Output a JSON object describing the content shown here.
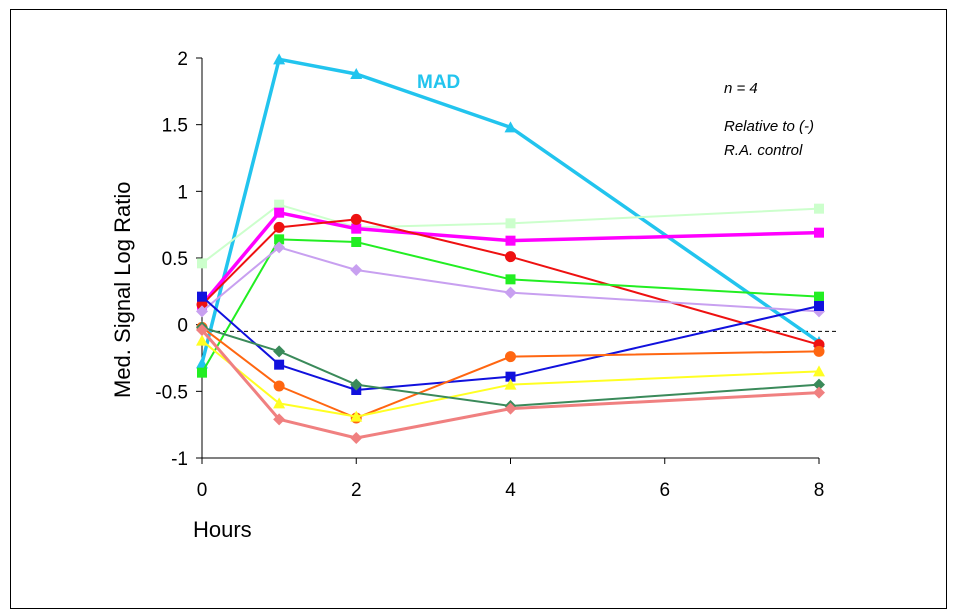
{
  "chart_data": {
    "type": "line",
    "xlabel": "Hours",
    "ylabel": "Med. Signal Log Ratio",
    "xlim": [
      0,
      8
    ],
    "ylim": [
      -1,
      2
    ],
    "xticks": [
      0,
      2,
      4,
      6,
      8
    ],
    "yticks": [
      -1,
      -0.5,
      0,
      0.5,
      1,
      1.5,
      2
    ],
    "xtick_labels": [
      "0",
      "2",
      "4",
      "6",
      "8"
    ],
    "ytick_labels": [
      "-1",
      "-0.5",
      "0",
      "0.5",
      "1",
      "1.5",
      "2"
    ],
    "reference_line_y": -0.05,
    "annotations": {
      "series_label": "MAD",
      "n": "n = 4",
      "relative_line1": "Relative to (-)",
      "relative_line2": "R.A. control"
    },
    "x": [
      0,
      1,
      2,
      4,
      8
    ],
    "series": [
      {
        "name": "MAD",
        "color": "#22c4ee",
        "marker": "triangle",
        "width": 3.5,
        "values": [
          -0.29,
          1.99,
          1.88,
          1.48,
          -0.13
        ]
      },
      {
        "color": "#ccffcc",
        "marker": "square",
        "width": 2,
        "values": [
          0.46,
          0.9,
          0.73,
          0.76,
          0.87
        ]
      },
      {
        "color": "#ff00ff",
        "marker": "square",
        "width": 3.5,
        "values": [
          0.15,
          0.84,
          0.72,
          0.63,
          0.69
        ]
      },
      {
        "color": "#ee1111",
        "marker": "circle",
        "width": 2,
        "values": [
          0.15,
          0.73,
          0.79,
          0.51,
          -0.15
        ]
      },
      {
        "color": "#22ee22",
        "marker": "square",
        "width": 2,
        "values": [
          -0.36,
          0.64,
          0.62,
          0.34,
          0.21
        ]
      },
      {
        "color": "#c8a0f0",
        "marker": "diamond",
        "width": 2,
        "values": [
          0.1,
          0.58,
          0.41,
          0.24,
          0.1
        ]
      },
      {
        "color": "#1111dd",
        "marker": "square",
        "width": 2,
        "values": [
          0.21,
          -0.3,
          -0.49,
          -0.39,
          0.14
        ]
      },
      {
        "color": "#ff6611",
        "marker": "circle",
        "width": 2,
        "values": [
          -0.02,
          -0.46,
          -0.7,
          -0.24,
          -0.2
        ]
      },
      {
        "color": "#ffff22",
        "marker": "triangle",
        "width": 2,
        "values": [
          -0.12,
          -0.59,
          -0.69,
          -0.45,
          -0.35
        ]
      },
      {
        "color": "#3a8a5a",
        "marker": "diamond",
        "width": 2,
        "values": [
          -0.02,
          -0.2,
          -0.45,
          -0.61,
          -0.45
        ]
      },
      {
        "color": "#f08080",
        "marker": "diamond",
        "width": 3,
        "values": [
          -0.04,
          -0.71,
          -0.85,
          -0.63,
          -0.51
        ]
      }
    ]
  }
}
